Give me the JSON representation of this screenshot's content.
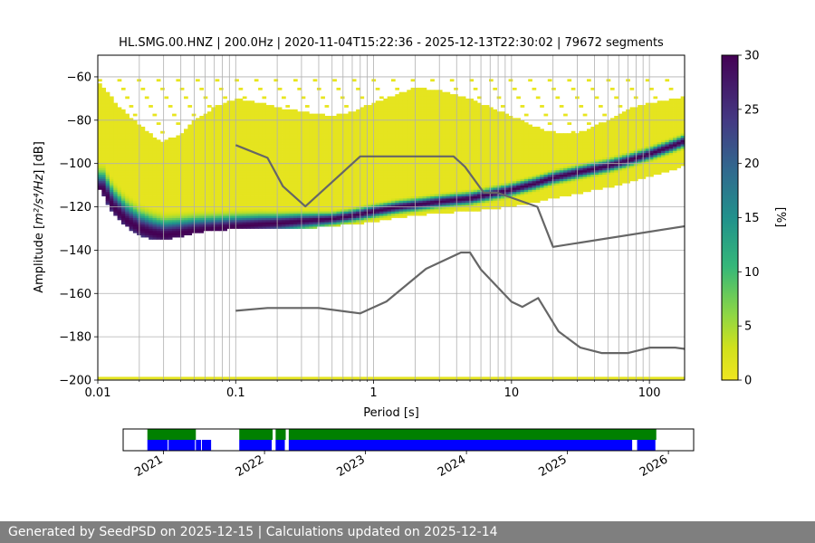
{
  "chart_data": [
    {
      "type": "heatmap",
      "title": "HL.SMG.00.HNZ | 200.0Hz | 2020-11-04T15:22:36 - 2025-12-13T22:30:02 | 79672 segments",
      "xlabel": "Period [s]",
      "ylabel_prefix": "Amplitude [",
      "ylabel_unit": "m²/s⁴/Hz",
      "ylabel_suffix": "] [dB]",
      "x_scale": "log",
      "xlim": [
        0.01,
        180
      ],
      "ylim": [
        -200,
        -50
      ],
      "x_ticks": [
        {
          "value": 0.01,
          "label": "0.01"
        },
        {
          "value": 0.1,
          "label": "0.1"
        },
        {
          "value": 1,
          "label": "1"
        },
        {
          "value": 10,
          "label": "10"
        },
        {
          "value": 100,
          "label": "100"
        }
      ],
      "y_ticks": [
        {
          "value": -200,
          "label": "−200"
        },
        {
          "value": -180,
          "label": "−180"
        },
        {
          "value": -160,
          "label": "−160"
        },
        {
          "value": -140,
          "label": "−140"
        },
        {
          "value": -120,
          "label": "−120"
        },
        {
          "value": -100,
          "label": "−100"
        },
        {
          "value": -80,
          "label": "−80"
        },
        {
          "value": -60,
          "label": "−60"
        }
      ],
      "grid": true,
      "colormap": "viridis_r",
      "colorbar": {
        "label": "[%]",
        "range": [
          0,
          30
        ],
        "ticks": [
          {
            "value": 0,
            "label": "0"
          },
          {
            "value": 5,
            "label": "5"
          },
          {
            "value": 10,
            "label": "10"
          },
          {
            "value": 15,
            "label": "15"
          },
          {
            "value": 20,
            "label": "20"
          },
          {
            "value": 25,
            "label": "25"
          },
          {
            "value": 30,
            "label": "30"
          }
        ]
      },
      "mode_curve": {
        "period": [
          0.011,
          0.013,
          0.016,
          0.02,
          0.025,
          0.03,
          0.04,
          0.05,
          0.07,
          0.1,
          0.15,
          0.2,
          0.3,
          0.5,
          0.7,
          1,
          1.5,
          2,
          3,
          5,
          7,
          10,
          15,
          20,
          30,
          50,
          70,
          100,
          150,
          180
        ],
        "db": [
          -112,
          -120,
          -126,
          -130,
          -132,
          -133,
          -132,
          -131,
          -130,
          -129,
          -128,
          -127.5,
          -126.5,
          -125.5,
          -124,
          -122,
          -120,
          -119,
          -117.5,
          -116,
          -114,
          -112,
          -109,
          -106.5,
          -104,
          -101,
          -98.5,
          -95.5,
          -91.5,
          -89.5
        ]
      },
      "envelope": {
        "period": [
          0.01,
          0.012,
          0.015,
          0.02,
          0.025,
          0.03,
          0.04,
          0.05,
          0.07,
          0.1,
          0.15,
          0.2,
          0.3,
          0.5,
          0.7,
          1,
          1.5,
          2,
          3,
          5,
          7,
          10,
          15,
          20,
          30,
          50,
          70,
          100,
          150,
          180
        ],
        "upper_db": [
          -62,
          -68,
          -75,
          -82,
          -87,
          -90,
          -86,
          -80,
          -74,
          -70,
          -72,
          -74,
          -76,
          -78,
          -76,
          -72,
          -68,
          -65,
          -66,
          -70,
          -74,
          -78,
          -83,
          -86,
          -86,
          -80,
          -75,
          -72,
          -70,
          -69
        ],
        "lower_db": [
          -110,
          -120,
          -128,
          -133,
          -135,
          -135,
          -134,
          -132,
          -131,
          -130,
          -130,
          -130,
          -130,
          -129,
          -128,
          -127,
          -125,
          -124,
          -123,
          -122,
          -121,
          -120,
          -118,
          -116,
          -114,
          -111,
          -109,
          -106,
          -103,
          -101
        ]
      },
      "outlier_rows_db": [
        -62,
        -66,
        -70,
        -74,
        -78,
        -82,
        -86
      ],
      "noise_models": [
        {
          "period": [
            0.1,
            0.17,
            0.22,
            0.32,
            0.8,
            3.8,
            4.6,
            6.3,
            7.9,
            15.4,
            20,
            354.8
          ],
          "db": [
            -91.5,
            -97.4,
            -110.5,
            -119.8,
            -96.7,
            -96.7,
            -101.5,
            -113.5,
            -113.5,
            -120,
            -138.5,
            -126.0
          ]
        },
        {
          "period": [
            0.1,
            0.17,
            0.4,
            0.8,
            1.24,
            2.4,
            4.3,
            5,
            6,
            10,
            12,
            15.6,
            21.9,
            31.6,
            45,
            70,
            101,
            154,
            180
          ],
          "db": [
            -168,
            -166.7,
            -166.7,
            -169.2,
            -163.7,
            -148.6,
            -141.1,
            -141.1,
            -149.0,
            -163.8,
            -166.2,
            -162.1,
            -177.5,
            -185.0,
            -187.5,
            -187.5,
            -185.0,
            -185.0,
            -185.6
          ]
        }
      ],
      "vertical_period_lines": [
        0.02,
        0.03,
        0.04,
        0.05,
        0.06,
        0.07,
        0.08,
        0.09,
        0.2,
        0.3,
        0.4,
        0.5,
        0.6,
        0.7,
        0.8,
        0.9,
        2,
        3,
        4,
        5,
        6,
        7,
        8,
        9,
        20,
        30,
        40,
        50,
        60,
        70,
        80,
        90
      ]
    },
    {
      "type": "timeline",
      "x_ticks": [
        {
          "value": 2021,
          "label": "2021"
        },
        {
          "value": 2022,
          "label": "2022"
        },
        {
          "value": 2023,
          "label": "2023"
        },
        {
          "value": 2024,
          "label": "2024"
        },
        {
          "value": 2025,
          "label": "2025"
        },
        {
          "value": 2026,
          "label": "2026"
        }
      ],
      "xlim": [
        2020.6,
        2026.25
      ],
      "data_coverage": [
        [
          2020.84,
          2021.05
        ],
        [
          2021.05,
          2021.32
        ],
        [
          2021.32,
          2021.38
        ],
        [
          2021.38,
          2021.48
        ],
        [
          2021.75,
          2022.08
        ],
        [
          2022.11,
          2022.21
        ],
        [
          2022.24,
          2025.65
        ],
        [
          2025.69,
          2025.88
        ]
      ],
      "processed_coverage": [
        [
          2020.84,
          2021.32
        ],
        [
          2021.75,
          2022.08
        ],
        [
          2022.11,
          2022.21
        ],
        [
          2022.24,
          2025.88
        ]
      ],
      "colors": {
        "data": "#0000ff",
        "processed": "#008000"
      }
    }
  ],
  "footer": {
    "text": "Generated by SeedPSD on 2025-12-15 | Calculations updated on 2025-12-14",
    "bg": "#7f7f7f"
  }
}
